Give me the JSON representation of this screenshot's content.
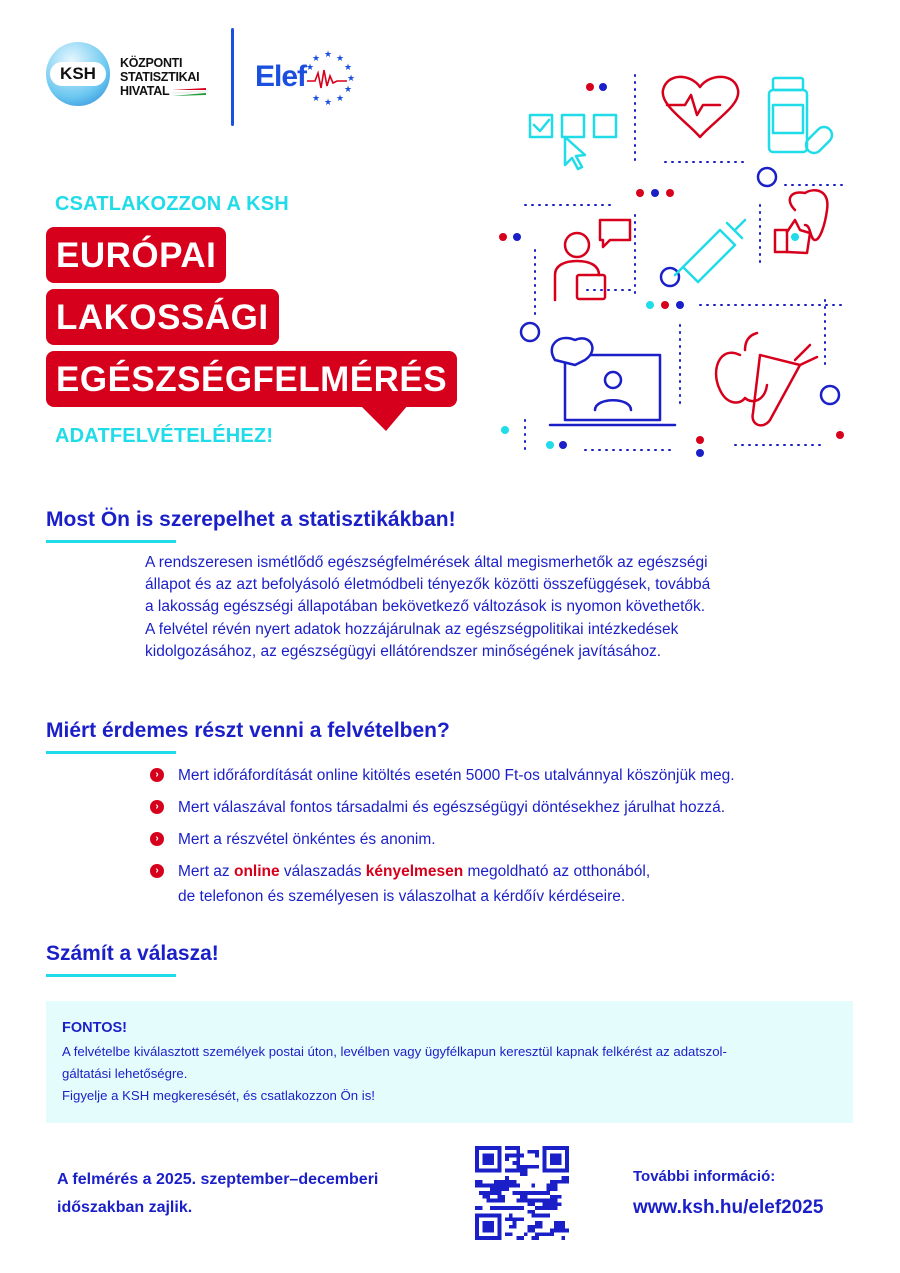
{
  "logos": {
    "ksh_badge": "KSH",
    "ksh_name_lines": [
      "KÖZPONTI",
      "STATISZTIKAI",
      "HIVATAL"
    ],
    "elef": "Elef"
  },
  "hero": {
    "kicker": "CSATLAKOZZON A KSH",
    "title_lines": [
      "EURÓPAI",
      "LAKOSSÁGI",
      "EGÉSZSÉGFELMÉRÉS"
    ],
    "subtitle": "ADATFELVÉTELÉHEZ!"
  },
  "colors": {
    "blue": "#1a1fc8",
    "red": "#d7001c",
    "cyan": "#20dbe8",
    "box_bg": "#e4fcfc"
  },
  "section1": {
    "heading": "Most Ön is szerepelhet a statisztikákban!",
    "paragraph_lines": [
      "A rendszeresen ismétlődő egészségfelmérések által megismerhetők az egészségi",
      "állapot és az azt befolyásoló életmódbeli tényezők közötti összefüggések, továbbá",
      "a lakosság egészségi állapotában bekövetkező változások is nyomon követhetők.",
      "A felvétel révén nyert adatok hozzájárulnak az egészségpolitikai intézkedések",
      "kidolgozásához, az egészségügyi ellátórendszer minőségének javításához."
    ]
  },
  "section2": {
    "heading": "Miért érdemes részt venni a felvételben?",
    "bullets": [
      "Mert időráfordítását online kitöltés esetén 5000 Ft-os utalvánnyal köszönjük meg.",
      "Mert válaszával fontos társadalmi és egészségügyi döntésekhez járulhat hozzá.",
      "Mert a részvétel önkéntes és anonim."
    ],
    "bullet4": {
      "part1": "Mert az ",
      "highlight1": "online",
      "part2": " válaszadás ",
      "highlight2": "kényelmesen",
      "part3": " megoldható az otthonából,",
      "line2": "de telefonon és személyesen is válaszolhat a kérdőív kérdéseire."
    }
  },
  "section3": {
    "heading": "Számít a válasza!"
  },
  "notice": {
    "title": "FONTOS!",
    "line1": "A felvételbe kiválasztott személyek postai úton, levélben vagy ügyfélkapun keresztül kapnak felkérést az adatszol-",
    "line2": "gáltatási lehetőségre.",
    "line3": "Figyelje a KSH megkeresését, és csatlakozzon Ön is!"
  },
  "footer": {
    "period_line1": "A felmérés a 2025. szeptember–decemberi",
    "period_line2": "időszakban zajlik.",
    "info_label": "További információ:",
    "url": "www.ksh.hu/elef2025"
  }
}
